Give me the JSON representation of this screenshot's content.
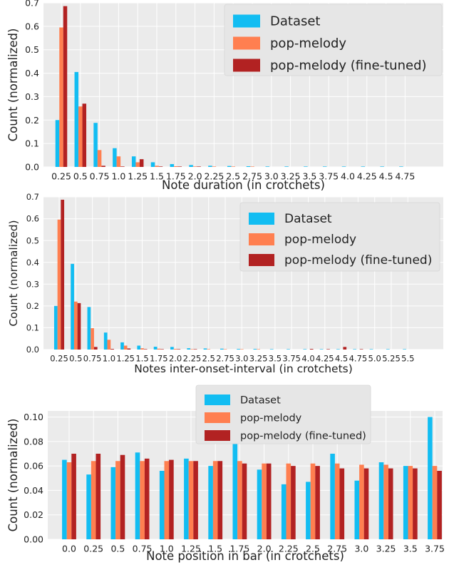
{
  "chart_data": [
    {
      "type": "bar",
      "xlabel": "Note duration (in crotchets)",
      "ylabel": "Count (normalized)",
      "ylim": [
        0,
        0.7
      ],
      "yticks": [
        "0.0",
        "0.1",
        "0.2",
        "0.3",
        "0.4",
        "0.5",
        "0.6",
        "0.7"
      ],
      "grid": true,
      "legend": "top-right",
      "categories": [
        "0.25",
        "0.5",
        "0.75",
        "1.0",
        "1.25",
        "1.5",
        "1.75",
        "2.0",
        "2.25",
        "2.5",
        "2.75",
        "3.0",
        "3.25",
        "3.5",
        "3.75",
        "4.0",
        "4.25",
        "4.5",
        "4.75"
      ],
      "series": [
        {
          "name": "Dataset",
          "color": "#12bdf2",
          "values": [
            0.2,
            0.405,
            0.188,
            0.08,
            0.045,
            0.02,
            0.012,
            0.008,
            0.005,
            0.004,
            0.003,
            0.002,
            0.002,
            0.001,
            0.001,
            0.001,
            0.001,
            0.001,
            0.0005
          ]
        },
        {
          "name": "pop-melody",
          "color": "#ff7f50",
          "values": [
            0.595,
            0.258,
            0.072,
            0.045,
            0.02,
            0.005,
            0.003,
            0.002,
            0.001,
            0.001,
            0.001,
            0.0,
            0.0,
            0.0,
            0.0,
            0.0,
            0.0,
            0.0,
            0.0
          ]
        },
        {
          "name": "pop-melody (fine-tuned)",
          "color": "#b22222",
          "values": [
            0.686,
            0.27,
            0.005,
            0.002,
            0.033,
            0.002,
            0.001,
            0.001,
            0.0,
            0.0,
            0.0,
            0.0,
            0.0,
            0.0,
            0.0,
            0.0,
            0.0,
            0.0,
            0.0
          ]
        }
      ]
    },
    {
      "type": "bar",
      "xlabel": "Notes inter-onset-interval (in crotchets)",
      "ylabel": "Count (normalized)",
      "ylim": [
        0,
        0.7
      ],
      "yticks": [
        "0.0",
        "0.1",
        "0.2",
        "0.3",
        "0.4",
        "0.5",
        "0.6",
        "0.7"
      ],
      "grid": true,
      "legend": "top-right",
      "categories": [
        "0.25",
        "0.5",
        "0.75",
        "1.0",
        "1.25",
        "1.5",
        "1.75",
        "2.0",
        "2.25",
        "2.5",
        "2.75",
        "3.0",
        "3.25",
        "3.5",
        "3.75",
        "4.0",
        "4.25",
        "4.5",
        "4.75",
        "5.0",
        "5.25",
        "5.5"
      ],
      "series": [
        {
          "name": "Dataset",
          "color": "#12bdf2",
          "values": [
            0.2,
            0.393,
            0.195,
            0.078,
            0.033,
            0.018,
            0.013,
            0.012,
            0.006,
            0.005,
            0.004,
            0.003,
            0.003,
            0.002,
            0.002,
            0.002,
            0.001,
            0.001,
            0.001,
            0.001,
            0.001,
            0.0005
          ]
        },
        {
          "name": "pop-melody",
          "color": "#ff7f50",
          "values": [
            0.596,
            0.22,
            0.098,
            0.045,
            0.018,
            0.006,
            0.004,
            0.003,
            0.002,
            0.001,
            0.001,
            0.001,
            0.001,
            0.0,
            0.0,
            0.0,
            0.0,
            0.0,
            0.0,
            0.0,
            0.0,
            0.0
          ]
        },
        {
          "name": "pop-melody (fine-tuned)",
          "color": "#b22222",
          "values": [
            0.687,
            0.213,
            0.012,
            0.003,
            0.005,
            0.002,
            0.001,
            0.001,
            0.001,
            0.0,
            0.0,
            0.0,
            0.0,
            0.0,
            0.0,
            0.003,
            0.002,
            0.012,
            0.002,
            0.0,
            0.0,
            0.0
          ]
        }
      ]
    },
    {
      "type": "bar",
      "xlabel": "Note position in bar (in crotchets)",
      "ylabel": "Count (normalized)",
      "ylim": [
        0,
        0.105
      ],
      "yticks": [
        "0.00",
        "0.02",
        "0.04",
        "0.06",
        "0.08",
        "0.10"
      ],
      "grid": true,
      "legend": "top-center",
      "categories": [
        "0.0",
        "0.25",
        "0.5",
        "0.75",
        "1.0",
        "1.25",
        "1.5",
        "1.75",
        "2.0",
        "2.25",
        "2.5",
        "2.75",
        "3.0",
        "3.25",
        "3.5",
        "3.75"
      ],
      "series": [
        {
          "name": "Dataset",
          "color": "#12bdf2",
          "values": [
            0.065,
            0.053,
            0.059,
            0.071,
            0.056,
            0.066,
            0.06,
            0.078,
            0.057,
            0.045,
            0.047,
            0.07,
            0.048,
            0.063,
            0.06,
            0.1
          ]
        },
        {
          "name": "pop-melody",
          "color": "#ff7f50",
          "values": [
            0.063,
            0.064,
            0.064,
            0.064,
            0.064,
            0.064,
            0.064,
            0.064,
            0.062,
            0.062,
            0.062,
            0.062,
            0.061,
            0.061,
            0.06,
            0.06
          ]
        },
        {
          "name": "pop-melody (fine-tuned)",
          "color": "#b22222",
          "values": [
            0.07,
            0.07,
            0.069,
            0.066,
            0.065,
            0.064,
            0.064,
            0.062,
            0.062,
            0.06,
            0.06,
            0.058,
            0.058,
            0.058,
            0.058,
            0.056
          ]
        }
      ]
    }
  ]
}
